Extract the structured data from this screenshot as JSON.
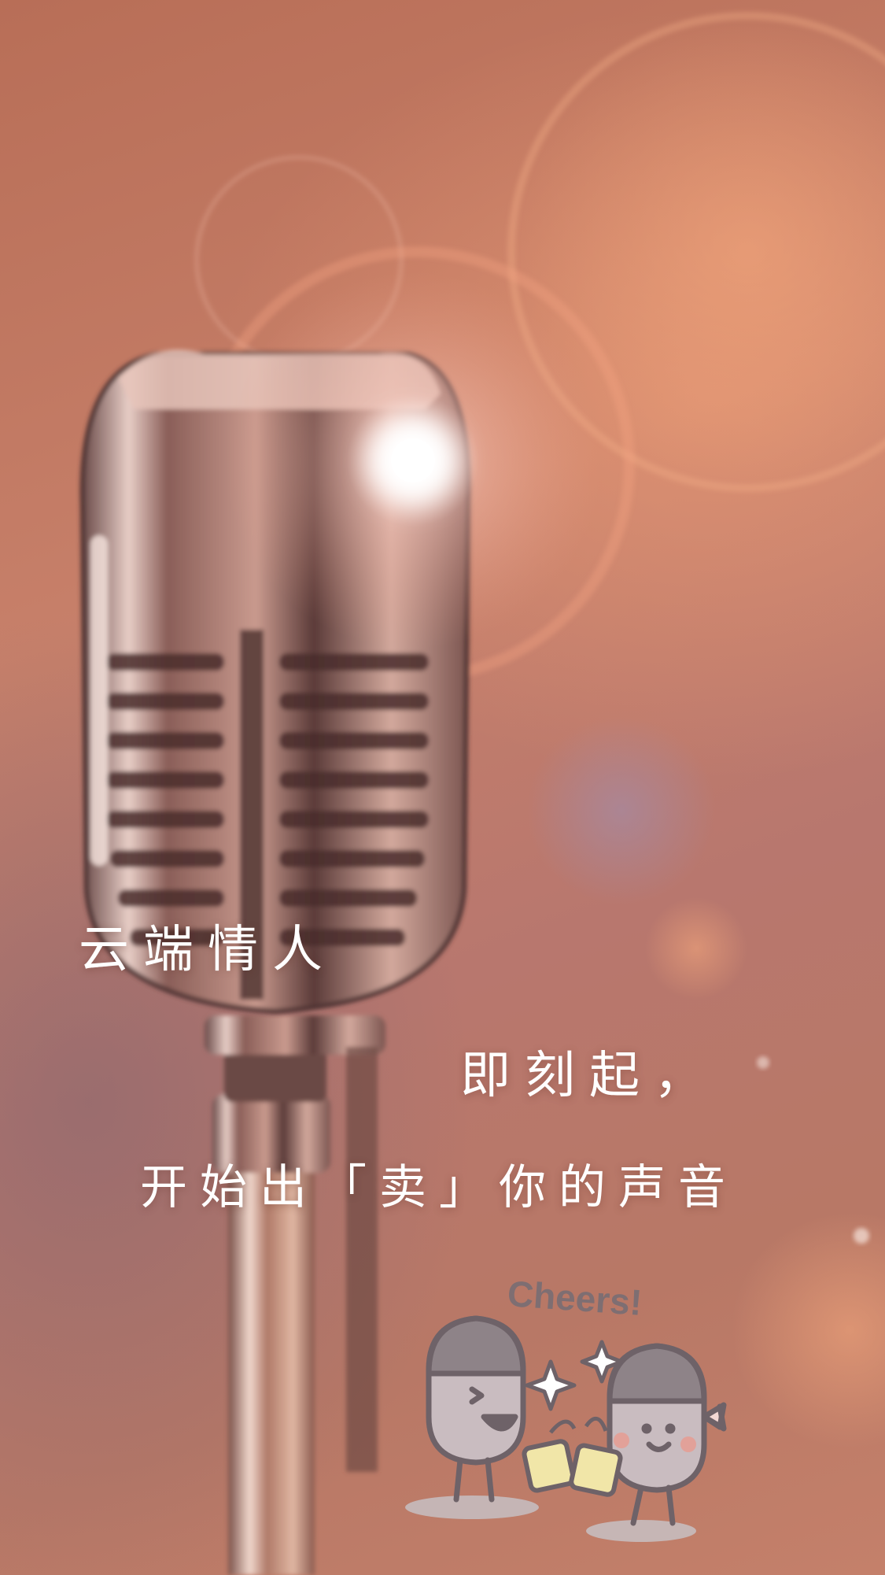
{
  "headline": {
    "title": "云端情人",
    "line_two": "即刻起，",
    "line_three": "开始出「卖」你的声音"
  },
  "sticker": {
    "caption": "Cheers!"
  },
  "palette": {
    "background_warm": "#c27a66",
    "flare_core": "#ffffff",
    "chrome_dark": "#3b2a2a",
    "chrome_light": "#e9d2cc",
    "sticker_outline": "#6e6268",
    "sticker_fill": "#c9bcc0",
    "beer": "#f1e6a8"
  },
  "icons": [
    "microphone-illustration",
    "lens-flare",
    "cheers-sticker",
    "sparkle-icon"
  ]
}
